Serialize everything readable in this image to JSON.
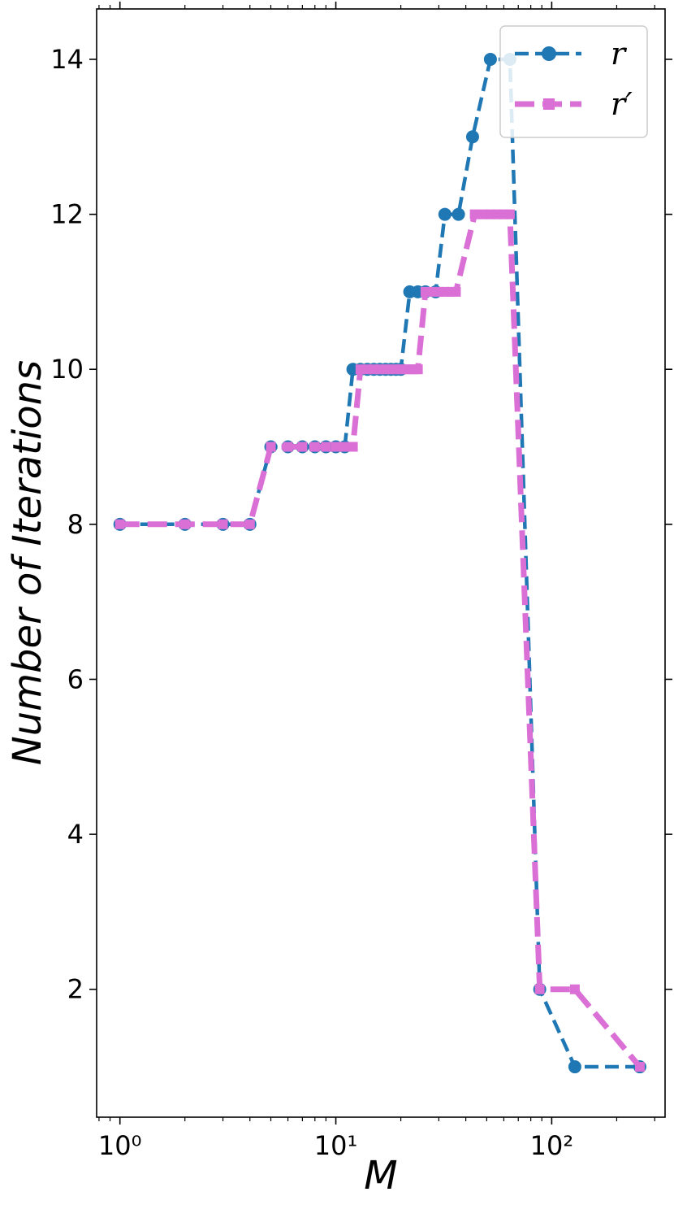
{
  "chart_data": {
    "type": "line",
    "title": "",
    "xlabel": "M",
    "ylabel": "Number of Iterations",
    "x_scale": "log",
    "xlim": [
      0.78,
      335
    ],
    "ylim": [
      0.35,
      14.65
    ],
    "x_ticks": [
      {
        "value": 1,
        "label": "10⁰"
      },
      {
        "value": 10,
        "label": "10¹"
      },
      {
        "value": 100,
        "label": "10²"
      }
    ],
    "y_ticks": [
      2,
      4,
      6,
      8,
      10,
      12,
      14
    ],
    "grid": false,
    "legend_position": "top-right",
    "series": [
      {
        "name": "r",
        "color": "#1f77b4",
        "marker": "circle",
        "line_style": "dashed",
        "points": [
          [
            1,
            8
          ],
          [
            2,
            8
          ],
          [
            3,
            8
          ],
          [
            4,
            8
          ],
          [
            5,
            9
          ],
          [
            6,
            9
          ],
          [
            7,
            9
          ],
          [
            8,
            9
          ],
          [
            9,
            9
          ],
          [
            10,
            9
          ],
          [
            11,
            9
          ],
          [
            12,
            10
          ],
          [
            13,
            10
          ],
          [
            14,
            10
          ],
          [
            15,
            10
          ],
          [
            16,
            10
          ],
          [
            17,
            10
          ],
          [
            18,
            10
          ],
          [
            19,
            10
          ],
          [
            20,
            10
          ],
          [
            22,
            11
          ],
          [
            24,
            11
          ],
          [
            26,
            11
          ],
          [
            29,
            11
          ],
          [
            32,
            12
          ],
          [
            37,
            12
          ],
          [
            43,
            13
          ],
          [
            52,
            14
          ],
          [
            64,
            14
          ],
          [
            88,
            2
          ],
          [
            128,
            1
          ],
          [
            256,
            1
          ]
        ]
      },
      {
        "name": "r′",
        "color": "#da70d6",
        "marker": "square",
        "line_style": "dashed",
        "points": [
          [
            1,
            8
          ],
          [
            2,
            8
          ],
          [
            3,
            8
          ],
          [
            4,
            8
          ],
          [
            5,
            9
          ],
          [
            6,
            9
          ],
          [
            7,
            9
          ],
          [
            8,
            9
          ],
          [
            9,
            9
          ],
          [
            10,
            9
          ],
          [
            11,
            9
          ],
          [
            12,
            9
          ],
          [
            13,
            10
          ],
          [
            14,
            10
          ],
          [
            15,
            10
          ],
          [
            16,
            10
          ],
          [
            17,
            10
          ],
          [
            18,
            10
          ],
          [
            19,
            10
          ],
          [
            20,
            10
          ],
          [
            21,
            10
          ],
          [
            22,
            10
          ],
          [
            23,
            10
          ],
          [
            24,
            10
          ],
          [
            26,
            11
          ],
          [
            28,
            11
          ],
          [
            30,
            11
          ],
          [
            32,
            11
          ],
          [
            34,
            11
          ],
          [
            36,
            11
          ],
          [
            44,
            12
          ],
          [
            48,
            12
          ],
          [
            52,
            12
          ],
          [
            56,
            12
          ],
          [
            60,
            12
          ],
          [
            64,
            12
          ],
          [
            88,
            2
          ],
          [
            128,
            2
          ],
          [
            256,
            1
          ]
        ]
      }
    ]
  }
}
